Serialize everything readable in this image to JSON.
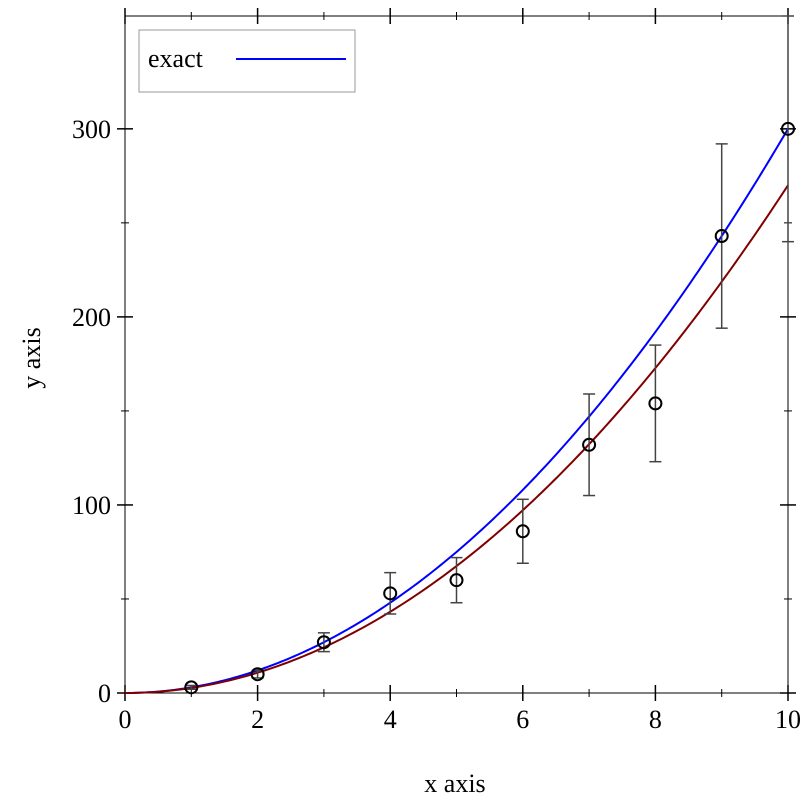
{
  "chart_data": {
    "type": "line",
    "title": "",
    "xlabel": "x axis",
    "ylabel": "y axis",
    "xlim": [
      0,
      10
    ],
    "ylim": [
      0,
      360
    ],
    "x_ticks": [
      0,
      2,
      4,
      6,
      8,
      10
    ],
    "x_tick_labels": [
      "0",
      "2",
      "4",
      "6",
      "8",
      "10"
    ],
    "y_ticks": [
      0,
      100,
      200,
      300
    ],
    "y_tick_labels": [
      "0",
      "100",
      "200",
      "300"
    ],
    "x_minor_ticks": [
      1,
      3,
      5,
      7,
      9
    ],
    "y_minor_ticks": [
      50,
      150,
      250
    ],
    "grid": false,
    "legend": {
      "position": "top-left",
      "entries": [
        "exact"
      ]
    },
    "series": [
      {
        "name": "exact",
        "kind": "line",
        "function": "3*x^2",
        "color": "#0000ff"
      },
      {
        "kind": "line",
        "function": "2.7*x^2",
        "color": "#800000"
      },
      {
        "kind": "points-with-error-bars",
        "color": "#000000",
        "x": [
          1,
          2,
          3,
          4,
          5,
          6,
          7,
          8,
          9,
          10
        ],
        "y": [
          3,
          10,
          27,
          53,
          60,
          86,
          132,
          154,
          243,
          300
        ],
        "error": [
          1,
          2,
          5,
          11,
          12,
          17,
          27,
          31,
          49,
          60
        ]
      }
    ]
  }
}
